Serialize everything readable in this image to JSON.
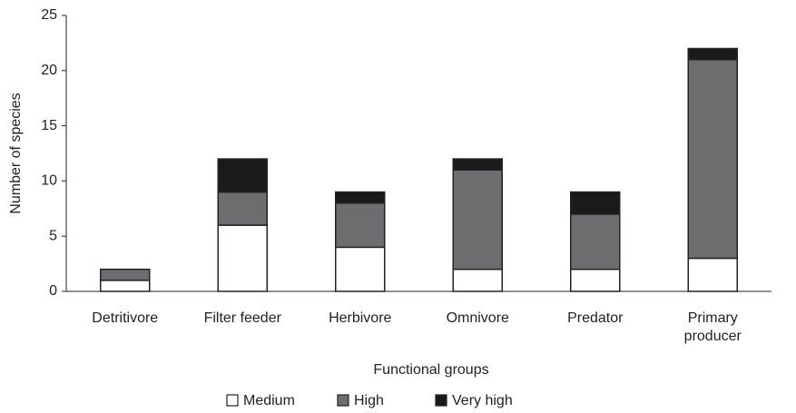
{
  "chart_data": {
    "type": "stacked_bar",
    "x_label": "Functional groups",
    "y_label": "Number of species",
    "categories": [
      "Detritivore",
      "Filter feeder",
      "Herbivore",
      "Omnivore",
      "Predator",
      "Primary producer"
    ],
    "series": [
      {
        "name": "Medium",
        "color": "#ffffff",
        "values": [
          1,
          6,
          4,
          2,
          2,
          3
        ]
      },
      {
        "name": "High",
        "color": "#6d6d6f",
        "values": [
          1,
          3,
          4,
          9,
          5,
          18
        ]
      },
      {
        "name": "Very high",
        "color": "#1a1a1a",
        "values": [
          0,
          3,
          1,
          1,
          2,
          1
        ]
      }
    ],
    "ylim": [
      0,
      25
    ],
    "yticks": [
      0,
      5,
      10,
      15,
      20,
      25
    ],
    "legend": "bottom"
  }
}
